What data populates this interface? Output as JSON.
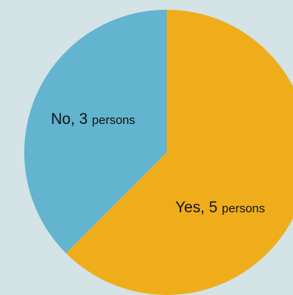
{
  "chart_data": {
    "type": "pie",
    "slices": [
      {
        "label": "Yes",
        "value": 5,
        "unit": "persons",
        "color": "#f0ad1b"
      },
      {
        "label": "No",
        "value": 3,
        "unit": "persons",
        "color": "#62b4cf"
      }
    ],
    "title": "",
    "legend": "none",
    "background": "#d3e3e6",
    "start": "12 o'clock",
    "direction": "clockwise"
  }
}
